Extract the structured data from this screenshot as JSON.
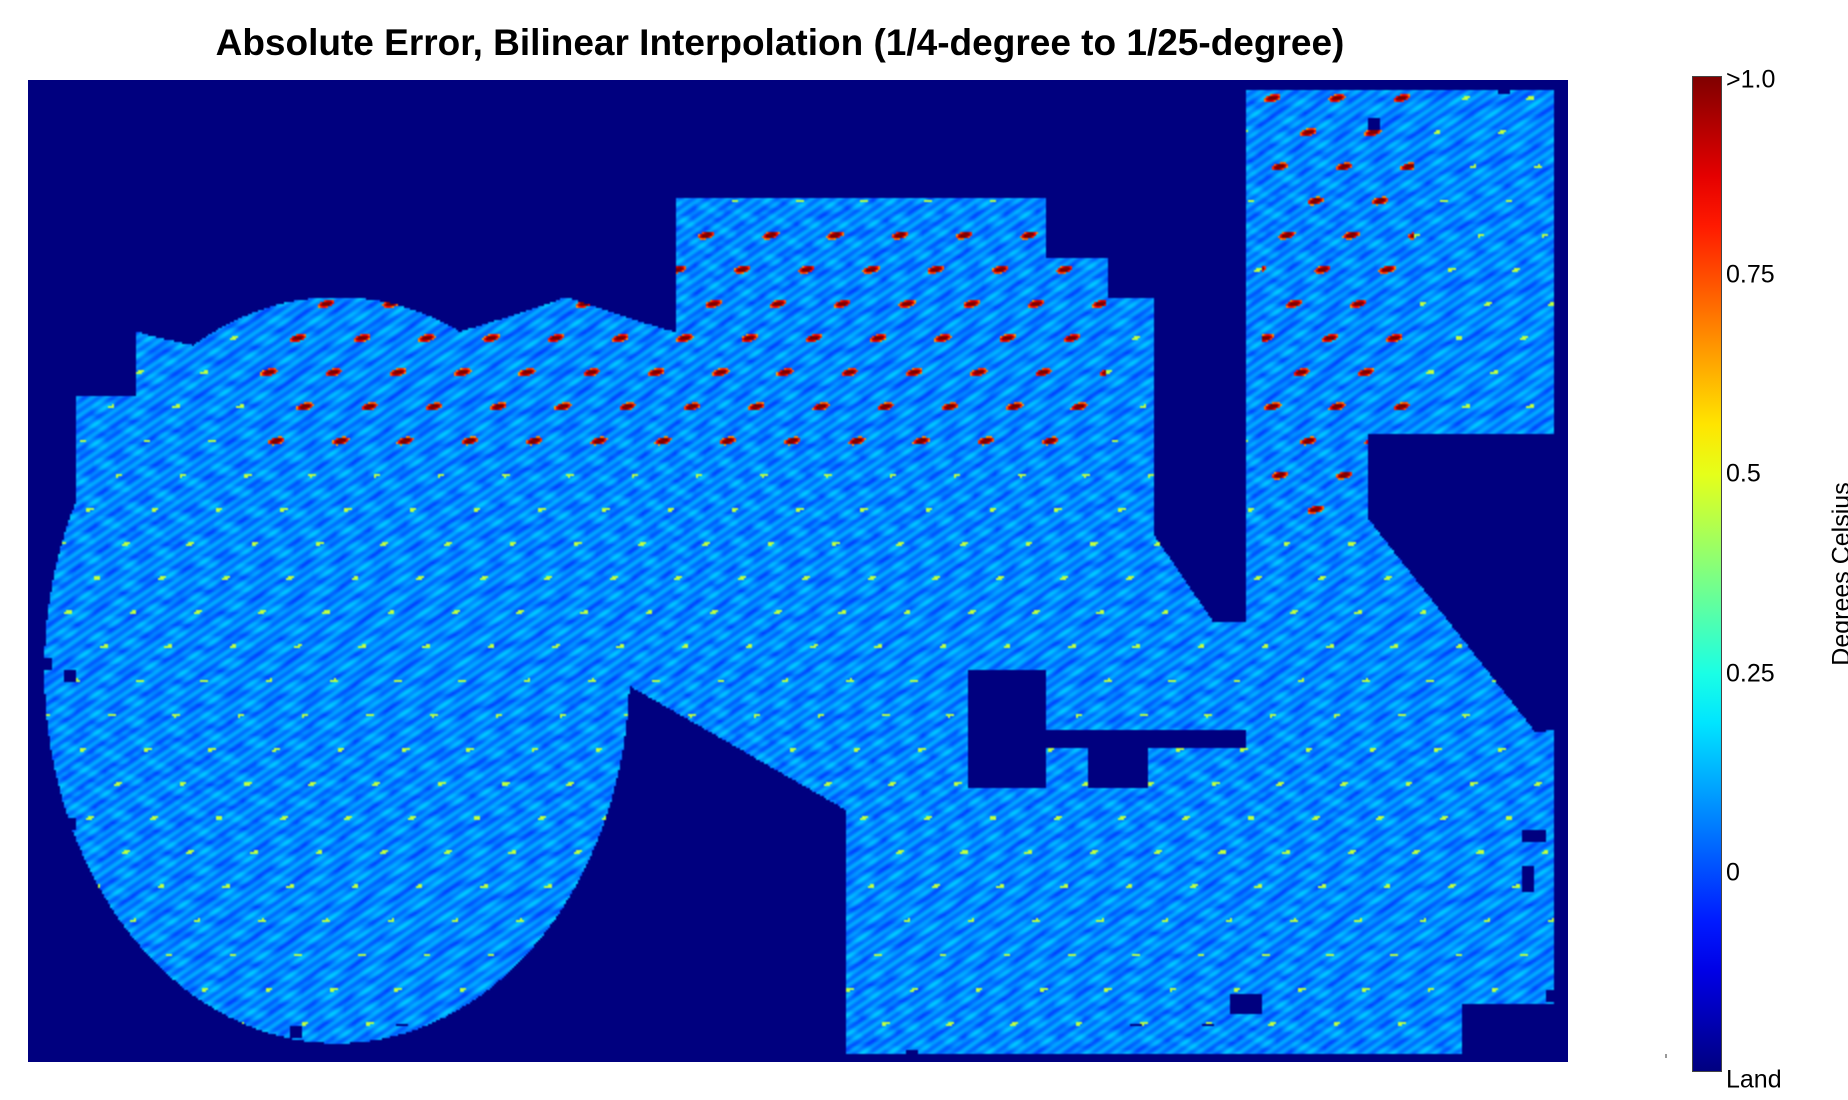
{
  "chart_data": {
    "type": "heatmap",
    "title": "Absolute Error, Bilinear Interpolation (1/4-degree to 1/25-degree)",
    "colormap": "jet",
    "land_color": "#00007f",
    "colorbar": {
      "label": "Degrees Celsius",
      "range": [
        -0.25,
        1.0
      ],
      "ticks": [
        {
          "label": ">1.0",
          "value": 1.0
        },
        {
          "label": "0.75",
          "value": 0.75
        },
        {
          "label": "0.5",
          "value": 0.5
        },
        {
          "label": "0.25",
          "value": 0.25
        },
        {
          "label": "0",
          "value": 0
        },
        {
          "label": "Land",
          "value": -0.25
        }
      ]
    },
    "grid": false,
    "legend_position": "right"
  }
}
